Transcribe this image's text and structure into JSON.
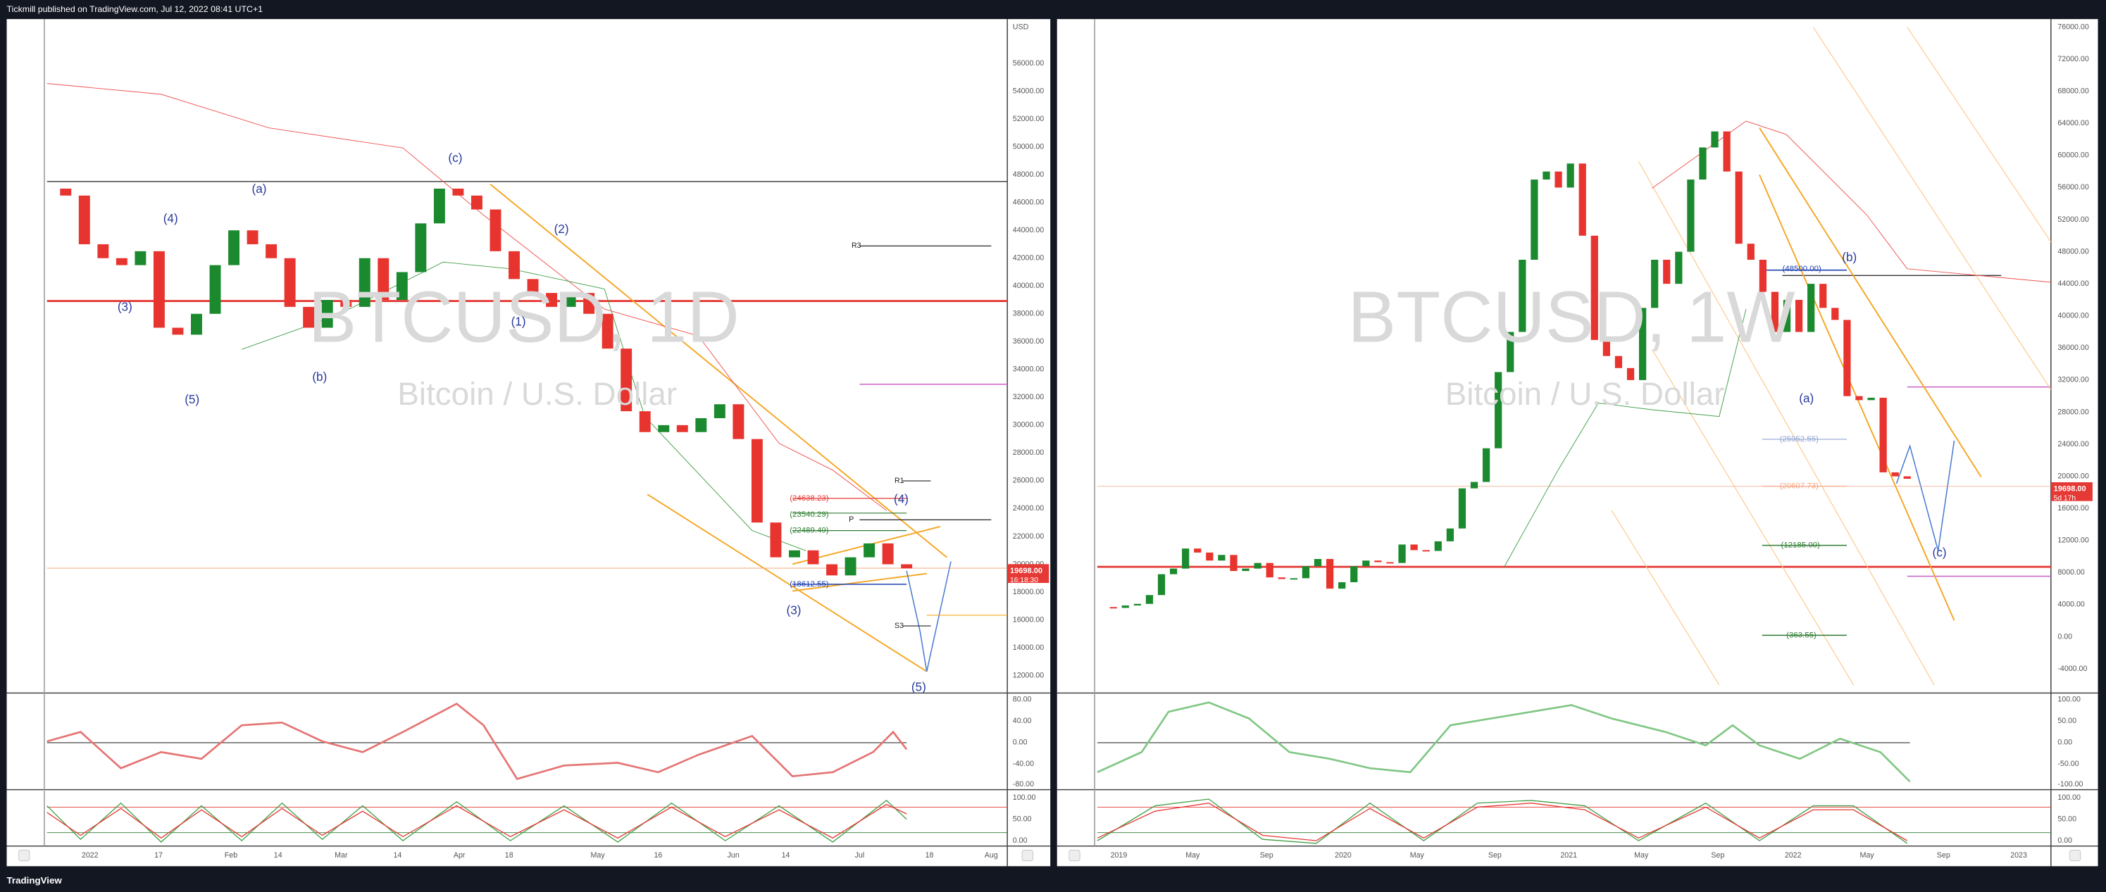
{
  "header": {
    "text": "Tickmill published on TradingView.com, Jul 12, 2022 08:41 UTC+1"
  },
  "footer": {
    "brand": "TradingView"
  },
  "panes": [
    {
      "watermark": "BTCUSD, 1D",
      "subtitle": "Bitcoin / U.S. Dollar",
      "currency": "USD",
      "price_axis": [
        "56000.00",
        "54000.00",
        "52000.00",
        "50000.00",
        "48000.00",
        "46000.00",
        "44000.00",
        "42000.00",
        "40000.00",
        "38000.00",
        "36000.00",
        "34000.00",
        "32000.00",
        "30000.00",
        "28000.00",
        "26000.00",
        "24000.00",
        "22000.00",
        "20000.00",
        "18000.00",
        "16000.00",
        "14000.00",
        "12000.00"
      ],
      "last_price": "19698.00",
      "countdown": "16:18:30",
      "rsi_axis": [
        "80.00",
        "40.00",
        "0.00",
        "-40.00",
        "-80.00"
      ],
      "stoch_axis": [
        "100.00",
        "50.00",
        "0.00"
      ],
      "time_axis": [
        "2022",
        "17",
        "Feb",
        "14",
        "Mar",
        "14",
        "Apr",
        "18",
        "May",
        "16",
        "Jun",
        "14",
        "Jul",
        "18",
        "Aug"
      ],
      "annotations": [
        "(4)",
        "(a)",
        "(c)",
        "(2)",
        "(1)",
        "(3)",
        "(b)",
        "(5)",
        "(3)",
        "(4)",
        "(5)",
        "R3",
        "R1",
        "P",
        "S3",
        "(24638.23)",
        "(23540.29)",
        "(22489.49)",
        "(18612.55)"
      ],
      "close": [
        47000,
        46500,
        43000,
        42000,
        41500,
        42500,
        37000,
        36500,
        38000,
        41500,
        44000,
        43000,
        42000,
        38500,
        37000,
        39000,
        38500,
        42000,
        39000,
        41000,
        44500,
        47000,
        46500,
        45500,
        42500,
        40500,
        39500,
        38500,
        39500,
        38000,
        35500,
        31000,
        29500,
        30000,
        29500,
        30500,
        31500,
        29000,
        23000,
        20500,
        21000,
        20000,
        19200,
        20500,
        21500,
        20000,
        19700
      ]
    },
    {
      "watermark": "BTCUSD, 1W",
      "subtitle": "Bitcoin / U.S. Dollar",
      "price_axis": [
        "76000.00",
        "72000.00",
        "68000.00",
        "64000.00",
        "60000.00",
        "56000.00",
        "52000.00",
        "48000.00",
        "44000.00",
        "40000.00",
        "36000.00",
        "32000.00",
        "28000.00",
        "24000.00",
        "20000.00",
        "16000.00",
        "12000.00",
        "8000.00",
        "4000.00",
        "0.00",
        "-4000.00"
      ],
      "last_price": "19698.00",
      "countdown": "5d 17h",
      "rsi_axis": [
        "100.00",
        "50.00",
        "0.00",
        "-50.00",
        "-100.00"
      ],
      "stoch_axis": [
        "100.00",
        "50.00",
        "0.00"
      ],
      "time_axis": [
        "2019",
        "May",
        "Sep",
        "2020",
        "May",
        "Sep",
        "2021",
        "May",
        "Sep",
        "2022",
        "May",
        "Sep",
        "2023"
      ],
      "annotations": [
        "(b)",
        "(a)",
        "(c)",
        "(48500.00)",
        "(25952.55)",
        "(20607.73)",
        "(12185.00)",
        "(363.55)"
      ],
      "close": [
        3700,
        3600,
        3900,
        4100,
        5200,
        7800,
        8500,
        11000,
        10500,
        9500,
        10200,
        8200,
        8500,
        9200,
        7400,
        7200,
        7300,
        8800,
        9700,
        6000,
        6800,
        8800,
        9500,
        9300,
        9200,
        11500,
        10800,
        10700,
        11900,
        13500,
        18500,
        19300,
        23500,
        33000,
        38000,
        47000,
        57000,
        58000,
        56000,
        59000,
        50000,
        37000,
        35000,
        33500,
        32000,
        41000,
        47000,
        44000,
        48000,
        57000,
        61000,
        63000,
        58000,
        49000,
        47000,
        43000,
        38000,
        42000,
        38000,
        44000,
        41000,
        39500,
        30000,
        29500,
        29800,
        20500,
        20000,
        19700
      ]
    }
  ]
}
